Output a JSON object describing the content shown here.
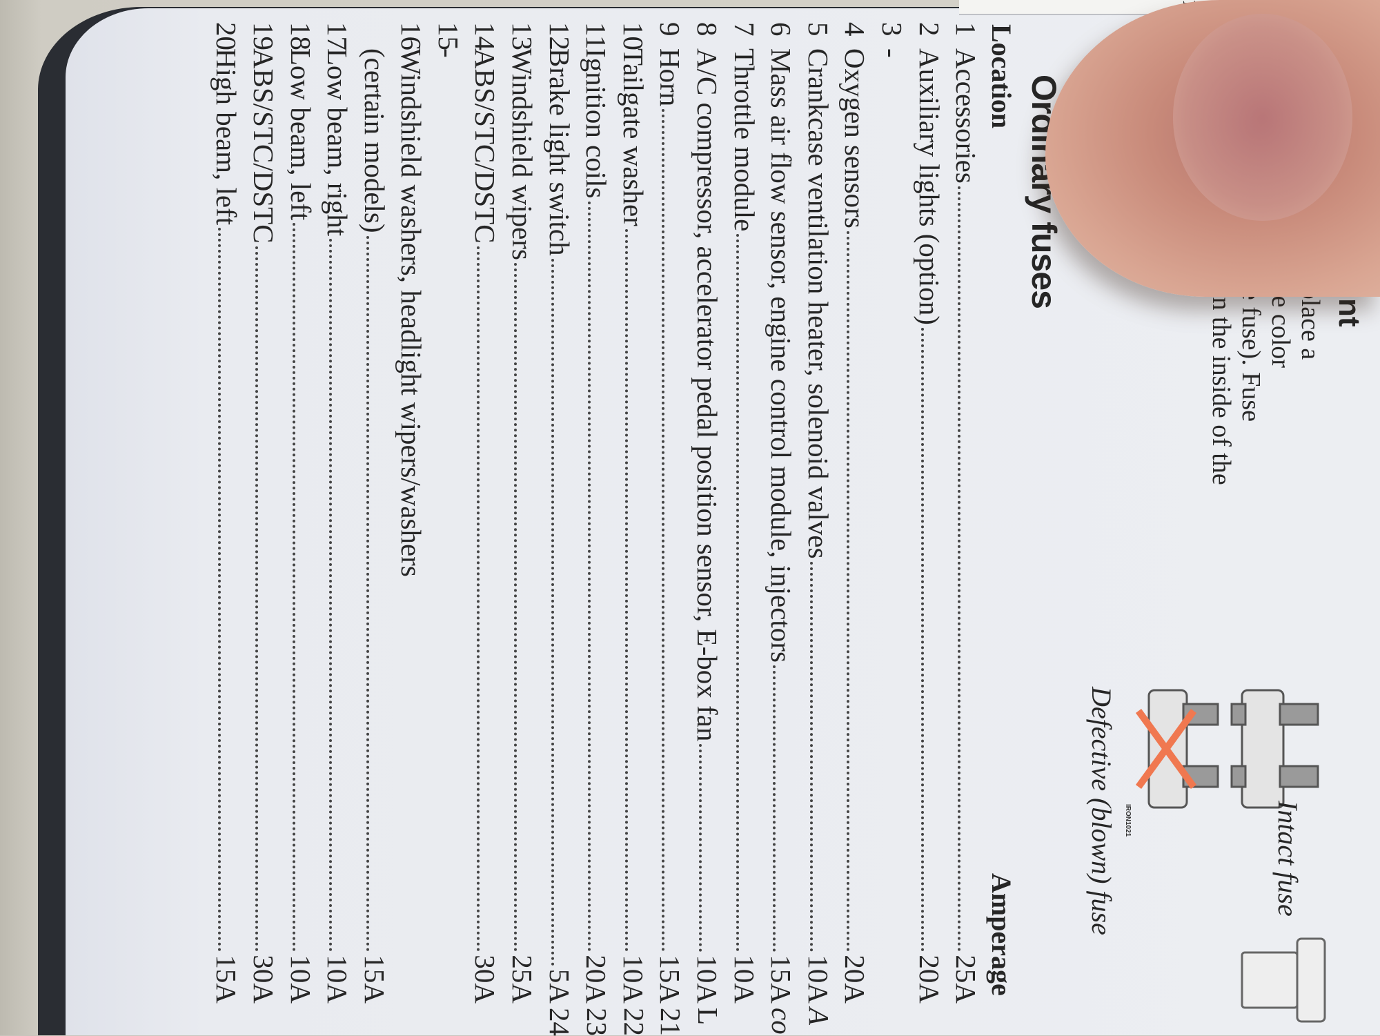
{
  "intro": {
    "heading_fragment": "nt",
    "lines": [
      "blo            ses, be sure to replace a",
      "              new one of the same color",
      "and ampe..ge (written on the fuse). Fuse",
      "amperage is also indicated on the inside of the",
      "fuse box cover."
    ]
  },
  "figure": {
    "intact_caption": "Intact fuse",
    "defective_caption": "Defective (blown) fuse",
    "code": "IRON1021",
    "mark_color": "#f07850"
  },
  "section": {
    "title": "Ordinary fuses",
    "col_location": "Location",
    "col_amperage": "Amperage"
  },
  "fuses": [
    {
      "num": "1",
      "label": "Accessories",
      "amp": "25A"
    },
    {
      "num": "2",
      "label": "Auxiliary lights (option)",
      "amp": "20A"
    },
    {
      "num": "3",
      "label": "-",
      "amp": ""
    },
    {
      "num": "4",
      "label": "Oxygen sensors",
      "amp": "20A"
    },
    {
      "num": "5",
      "label": "Crankcase ventilation heater, solenoid valves",
      "amp": "10A"
    },
    {
      "num": "6",
      "label": "Mass air flow sensor, engine control module, injectors",
      "amp": "15A"
    },
    {
      "num": "7",
      "label": "Throttle module",
      "amp": "10A"
    },
    {
      "num": "8",
      "label": "A/C compressor, accelerator pedal position sensor, E-box fan",
      "amp": "10A"
    },
    {
      "num": "9",
      "label": "Horn",
      "amp": "15A"
    },
    {
      "num": "10",
      "label": "Tailgate washer",
      "amp": "10A"
    },
    {
      "num": "11",
      "label": "Ignition coils",
      "amp": "20A"
    },
    {
      "num": "12",
      "label": "Brake light switch",
      "amp": "5A"
    },
    {
      "num": "13",
      "label": "Windshield wipers",
      "amp": "25A"
    },
    {
      "num": "14",
      "label": "ABS/STC/DSTC",
      "amp": "30A"
    },
    {
      "num": "15",
      "label": "-",
      "amp": ""
    },
    {
      "num": "16",
      "label": "Windshield washers, headlight wipers/washers",
      "amp": ""
    },
    {
      "num": "",
      "label": "(certain models)",
      "amp": "15A"
    },
    {
      "num": "17",
      "label": "Low beam, right",
      "amp": "10A"
    },
    {
      "num": "18",
      "label": "Low beam, left",
      "amp": "10A"
    },
    {
      "num": "19",
      "label": "ABS/STC/DSTC",
      "amp": "30A"
    },
    {
      "num": "20",
      "label": "High beam, left",
      "amp": "15A"
    }
  ],
  "next_page_fragments": [
    {
      "row": 4,
      "text": "A"
    },
    {
      "row": 5,
      "text": "co"
    },
    {
      "row": 7,
      "text": "L"
    },
    {
      "row": 8,
      "text": "21"
    },
    {
      "row": 9,
      "text": "22"
    },
    {
      "row": 10,
      "text": "23"
    },
    {
      "row": 11,
      "text": "24"
    }
  ]
}
